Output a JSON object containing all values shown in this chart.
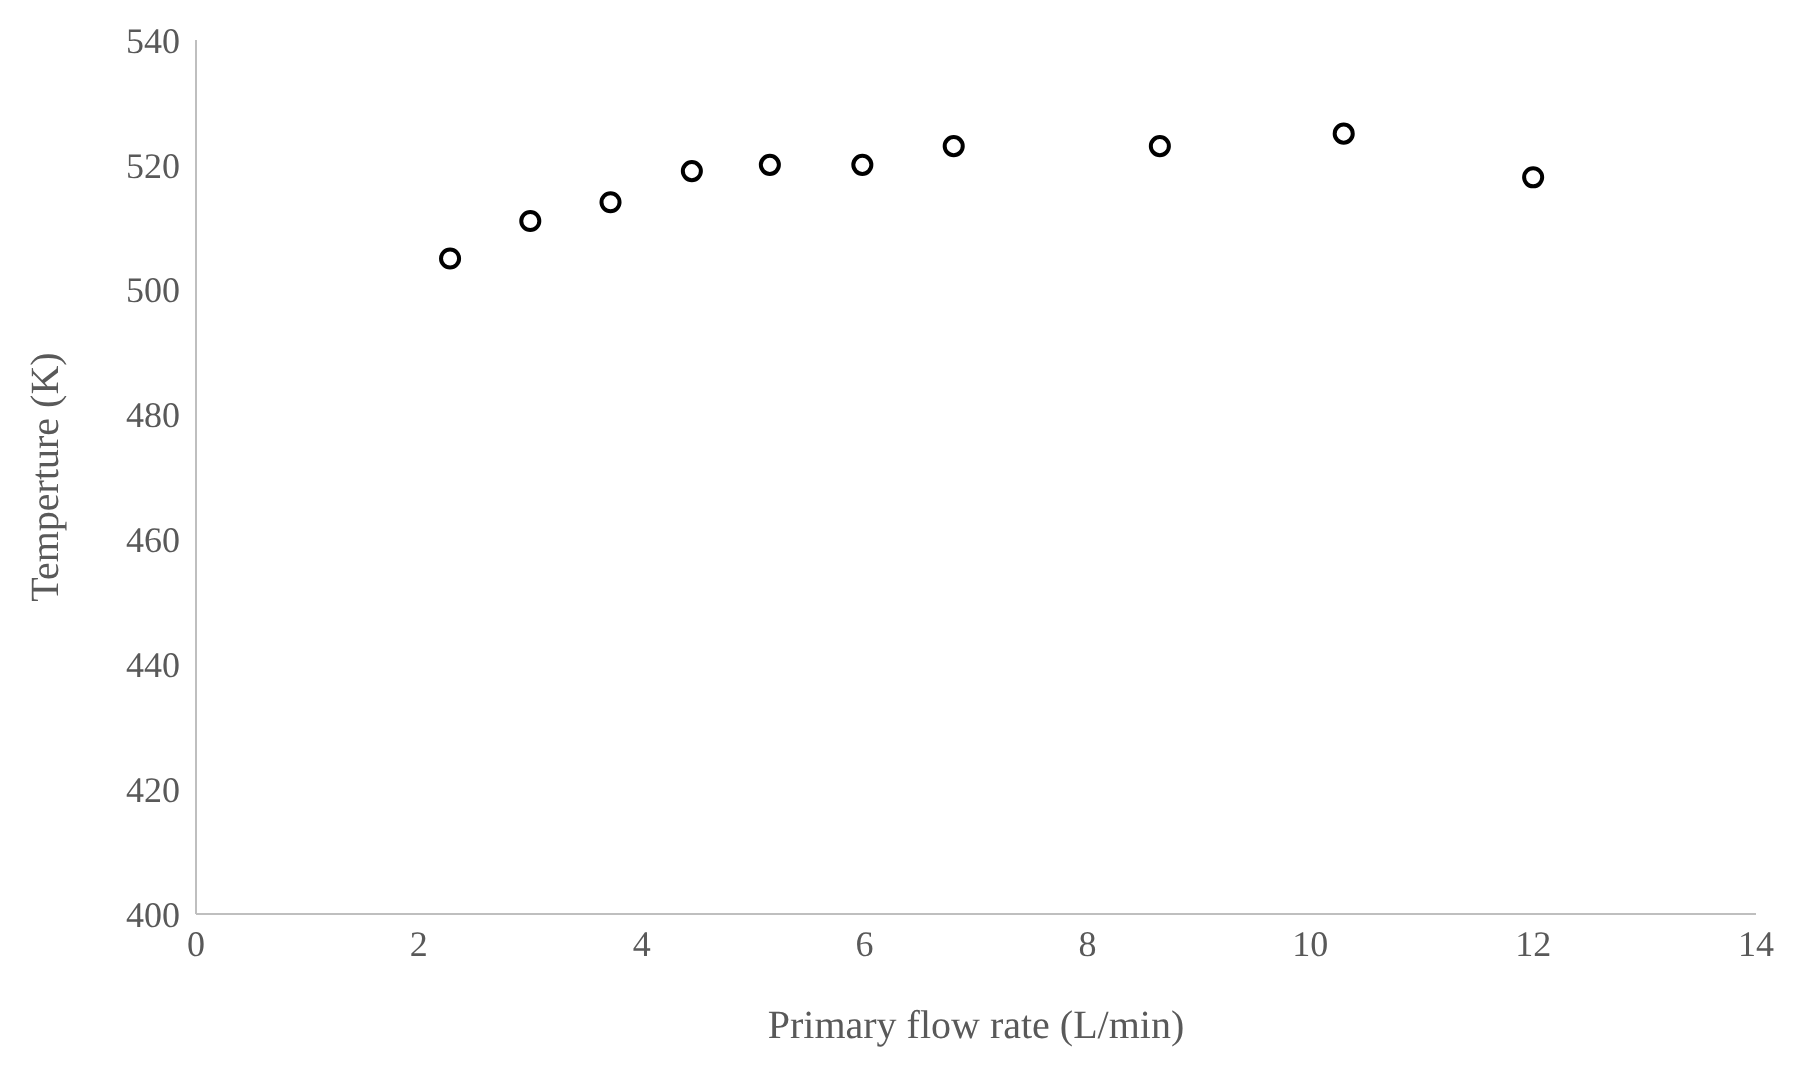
{
  "chart_data": {
    "type": "scatter",
    "xlabel": "Primary flow rate (L/min)",
    "ylabel": "Temperture (K)",
    "x": [
      2.28,
      3.0,
      3.72,
      4.45,
      5.15,
      5.98,
      6.8,
      8.65,
      10.3,
      12.0
    ],
    "values": [
      505,
      511,
      514,
      519,
      520,
      520,
      523,
      523,
      525,
      518
    ],
    "color": "#000000",
    "marker": "circle",
    "xlim": [
      0,
      14
    ],
    "xticks": [
      0,
      2,
      4,
      6,
      8,
      10,
      12,
      14
    ],
    "ylim": [
      400,
      540
    ],
    "yticks": [
      400,
      420,
      440,
      460,
      480,
      500,
      520,
      540
    ],
    "grid": false,
    "legend": false
  }
}
